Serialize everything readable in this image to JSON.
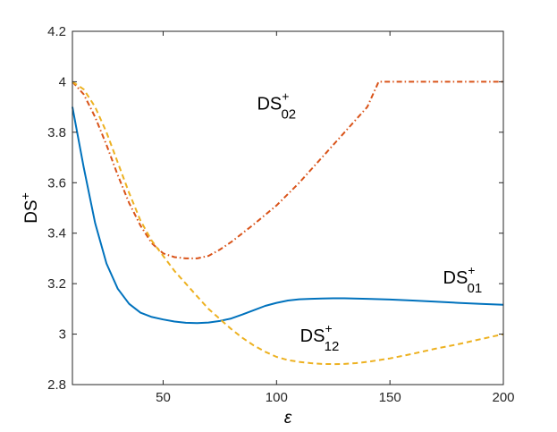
{
  "chart_data": {
    "type": "line",
    "title": "",
    "xlabel": "ε",
    "ylabel_main": "DS",
    "ylabel_sup": "+",
    "xlim": [
      10,
      200
    ],
    "ylim": [
      2.8,
      4.2
    ],
    "xticks": [
      50,
      100,
      150,
      200
    ],
    "yticks": [
      2.8,
      3,
      3.2,
      3.4,
      3.6,
      3.8,
      4,
      4.2
    ],
    "xtick_labels": [
      "50",
      "100",
      "150",
      "200"
    ],
    "ytick_labels": [
      "2.8",
      "3",
      "3.2",
      "3.4",
      "3.6",
      "3.8",
      "4",
      "4.2"
    ],
    "grid": false,
    "series": [
      {
        "name": "DS+01",
        "label_main": "DS",
        "label_sup": "+",
        "label_sub": "01",
        "label_at": [
          182,
          3.2
        ],
        "color": "#0072BD",
        "style": "solid",
        "x": [
          10,
          15,
          20,
          25,
          30,
          35,
          40,
          45,
          50,
          55,
          60,
          65,
          70,
          75,
          80,
          85,
          90,
          95,
          100,
          105,
          110,
          115,
          120,
          125,
          130,
          140,
          150,
          160,
          170,
          180,
          190,
          200
        ],
        "y": [
          3.9,
          3.66,
          3.44,
          3.28,
          3.18,
          3.12,
          3.085,
          3.068,
          3.058,
          3.05,
          3.045,
          3.044,
          3.046,
          3.052,
          3.062,
          3.078,
          3.095,
          3.112,
          3.124,
          3.133,
          3.138,
          3.14,
          3.141,
          3.142,
          3.142,
          3.14,
          3.137,
          3.133,
          3.129,
          3.124,
          3.12,
          3.116
        ]
      },
      {
        "name": "DS+02",
        "label_main": "DS",
        "label_sup": "+",
        "label_sub": "02",
        "label_at": [
          100,
          3.89
        ],
        "color": "#D95319",
        "style": "dashdot",
        "x": [
          10,
          15,
          20,
          25,
          30,
          35,
          40,
          45,
          50,
          55,
          60,
          65,
          70,
          75,
          80,
          85,
          90,
          100,
          110,
          120,
          130,
          140,
          145,
          150,
          160,
          170,
          180,
          190,
          200
        ],
        "y": [
          4.0,
          3.95,
          3.86,
          3.75,
          3.63,
          3.52,
          3.43,
          3.36,
          3.32,
          3.305,
          3.3,
          3.3,
          3.31,
          3.335,
          3.365,
          3.4,
          3.435,
          3.51,
          3.6,
          3.7,
          3.8,
          3.9,
          4.0,
          4.0,
          4.0,
          4.0,
          4.0,
          4.0,
          4.0
        ]
      },
      {
        "name": "DS+12",
        "label_main": "DS",
        "label_sup": "+",
        "label_sub": "12",
        "label_at": [
          119,
          2.97
        ],
        "color": "#EDB120",
        "style": "dashed",
        "x": [
          10,
          15,
          20,
          25,
          30,
          35,
          40,
          45,
          50,
          55,
          60,
          65,
          70,
          75,
          80,
          85,
          90,
          95,
          100,
          105,
          110,
          115,
          120,
          125,
          130,
          135,
          140,
          150,
          160,
          170,
          180,
          190,
          200
        ],
        "y": [
          4.0,
          3.97,
          3.9,
          3.8,
          3.68,
          3.56,
          3.45,
          3.37,
          3.31,
          3.25,
          3.2,
          3.15,
          3.1,
          3.06,
          3.02,
          2.985,
          2.955,
          2.93,
          2.91,
          2.897,
          2.89,
          2.885,
          2.882,
          2.881,
          2.882,
          2.885,
          2.89,
          2.904,
          2.922,
          2.942,
          2.96,
          2.98,
          3.0
        ]
      }
    ]
  }
}
